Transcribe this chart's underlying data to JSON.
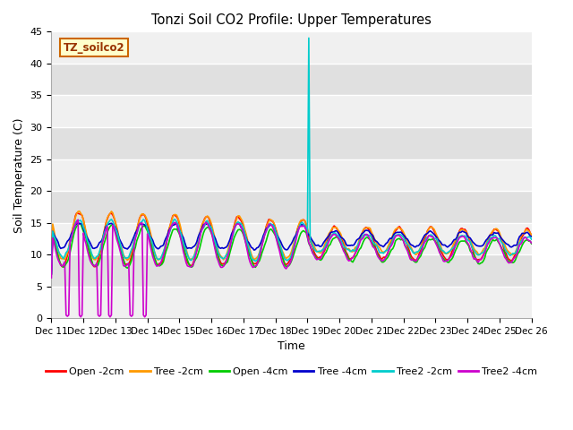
{
  "title": "Tonzi Soil CO2 Profile: Upper Temperatures",
  "ylabel": "Soil Temperature (C)",
  "xlabel": "Time",
  "watermark": "TZ_soilco2",
  "ylim": [
    0,
    45
  ],
  "xlim": [
    0,
    360
  ],
  "x_tick_labels": [
    "Dec 11",
    "Dec 12",
    "Dec 13",
    "Dec 14",
    "Dec 15",
    "Dec 16",
    "Dec 17",
    "Dec 18",
    "Dec 19",
    "Dec 20",
    "Dec 21",
    "Dec 22",
    "Dec 23",
    "Dec 24",
    "Dec 25",
    "Dec 26"
  ],
  "x_tick_positions": [
    0,
    24,
    48,
    72,
    96,
    120,
    144,
    168,
    192,
    216,
    240,
    264,
    288,
    312,
    336,
    360
  ],
  "series": [
    {
      "label": "Open -2cm",
      "color": "#ff0000"
    },
    {
      "label": "Tree -2cm",
      "color": "#ff9900"
    },
    {
      "label": "Open -4cm",
      "color": "#00cc00"
    },
    {
      "label": "Tree -4cm",
      "color": "#0000cc"
    },
    {
      "label": "Tree2 -2cm",
      "color": "#00cccc"
    },
    {
      "label": "Tree2 -4cm",
      "color": "#cc00cc"
    }
  ],
  "grid_colors": [
    "#d8d8d8",
    "#e8e8e8"
  ],
  "bg_color": "#e8e8e8"
}
